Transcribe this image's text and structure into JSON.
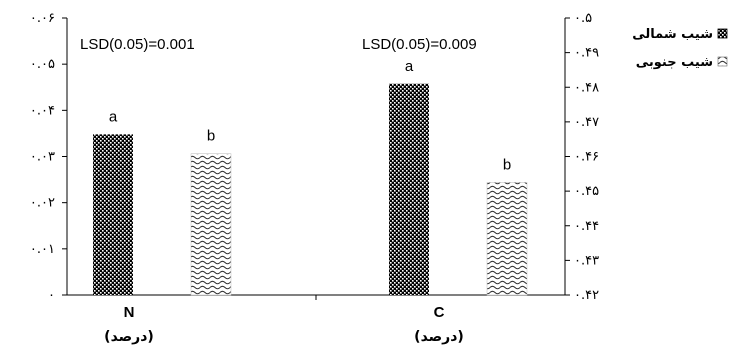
{
  "chart_data": {
    "type": "bar",
    "categories": [
      "N",
      "C"
    ],
    "category_units": [
      "(درصد)",
      "(درصد)"
    ],
    "series": [
      {
        "name": "شیب شمالی",
        "pattern": "checker",
        "color": "#000000",
        "values": [
          0.0348,
          0.481
        ]
      },
      {
        "name": "شیب جنوبی",
        "pattern": "wave",
        "color": "#ffffff",
        "values": [
          0.0306,
          0.4525
        ]
      }
    ],
    "significance_letters": [
      [
        "a",
        "b"
      ],
      [
        "a",
        "b"
      ]
    ],
    "annotations": [
      "LSD(0.05)=0.001",
      "LSD(0.05)=0.009"
    ],
    "y_left": {
      "range": [
        0,
        0.06
      ],
      "ticks": [
        0,
        0.01,
        0.02,
        0.03,
        0.04,
        0.05,
        0.06
      ],
      "tick_labels": [
        "۰",
        "۰.۰۱",
        "۰.۰۲",
        "۰.۰۳",
        "۰.۰۴",
        "۰.۰۵",
        "۰.۰۶"
      ],
      "applies_to": "N"
    },
    "y_right": {
      "range": [
        0.42,
        0.5
      ],
      "ticks": [
        0.42,
        0.43,
        0.44,
        0.45,
        0.46,
        0.47,
        0.48,
        0.49,
        0.5
      ],
      "tick_labels": [
        "۰.۴۲",
        "۰.۴۳",
        "۰.۴۴",
        "۰.۴۵",
        "۰.۴۶",
        "۰.۴۷",
        "۰.۴۸",
        "۰.۴۹",
        "۰.۵"
      ],
      "applies_to": "C"
    },
    "grid": false,
    "legend_position": "top-right"
  }
}
